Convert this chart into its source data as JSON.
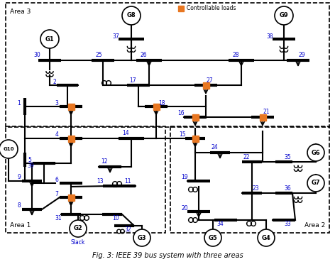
{
  "title": "Fig. 3: IEEE 39 bus system with three areas",
  "fig_width": 4.72,
  "fig_height": 3.86,
  "dpi": 100,
  "bg_color": "#ffffff",
  "lc": "#000000",
  "oc": "#E87722",
  "nc": "#0000cc",
  "area3_label": "Area 3",
  "area1_label": "Area 1",
  "area2_label": "Area 2",
  "legend_label": "Controllable loads",
  "slack_label": "Slack",
  "xlim": [
    0,
    472
  ],
  "ylim": [
    0,
    386
  ]
}
